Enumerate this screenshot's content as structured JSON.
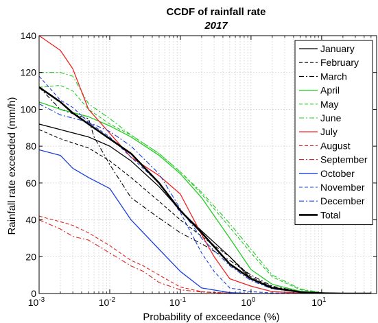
{
  "chart_data": {
    "type": "line",
    "title": "CCDF of rainfall rate",
    "subtitle": "2017",
    "xlabel": "Probability of exceedance (%)",
    "ylabel": "Rainfall rate exceeded (mm/h)",
    "xscale": "log",
    "xlim": [
      0.001,
      60
    ],
    "ylim": [
      0,
      140
    ],
    "yticks": [
      0,
      20,
      40,
      60,
      80,
      100,
      120,
      140
    ],
    "xticks": [
      {
        "value": 0.001,
        "base": "10",
        "exp": "-3"
      },
      {
        "value": 0.01,
        "base": "10",
        "exp": "-2"
      },
      {
        "value": 0.1,
        "base": "10",
        "exp": "-1"
      },
      {
        "value": 1,
        "base": "10",
        "exp": "0"
      },
      {
        "value": 10,
        "base": "10",
        "exp": "1"
      }
    ],
    "grid": true,
    "legend_position": "top-right",
    "series": [
      {
        "name": "January",
        "color": "#000000",
        "style": "solid",
        "width": 1.3,
        "x": [
          0.001,
          0.002,
          0.005,
          0.01,
          0.02,
          0.05,
          0.1,
          0.2,
          0.5,
          1,
          2,
          5,
          10,
          20,
          50
        ],
        "y": [
          92,
          89,
          85,
          80,
          72,
          58,
          45,
          34,
          20,
          8,
          3,
          0.8,
          0.2,
          0,
          0
        ]
      },
      {
        "name": "February",
        "color": "#000000",
        "style": "dashed",
        "width": 1.1,
        "x": [
          0.001,
          0.002,
          0.005,
          0.01,
          0.02,
          0.05,
          0.1,
          0.2,
          0.5,
          1,
          2,
          5,
          10,
          20,
          50
        ],
        "y": [
          89,
          84,
          79,
          72,
          63,
          50,
          40,
          31,
          20,
          9,
          3.5,
          1,
          0.3,
          0,
          0
        ]
      },
      {
        "name": "March",
        "color": "#000000",
        "style": "dashdot",
        "width": 1.1,
        "x": [
          0.001,
          0.002,
          0.004,
          0.005,
          0.006,
          0.01,
          0.02,
          0.05,
          0.1,
          0.2,
          0.5,
          1,
          2,
          5,
          10,
          20,
          50
        ],
        "y": [
          112,
          100,
          96,
          95,
          85,
          70,
          52,
          41,
          33,
          27,
          18,
          10,
          4,
          1,
          0.2,
          0,
          0
        ]
      },
      {
        "name": "April",
        "color": "#22cc22",
        "style": "solid",
        "width": 1.3,
        "x": [
          0.001,
          0.002,
          0.005,
          0.01,
          0.02,
          0.05,
          0.1,
          0.2,
          0.5,
          1,
          2,
          5,
          10,
          20,
          50
        ],
        "y": [
          104,
          100,
          96,
          91,
          85,
          75,
          65,
          52,
          30,
          13,
          5,
          1.2,
          0.3,
          0,
          0
        ]
      },
      {
        "name": "May",
        "color": "#22cc22",
        "style": "dashed",
        "width": 1.1,
        "x": [
          0.001,
          0.002,
          0.003,
          0.005,
          0.01,
          0.02,
          0.05,
          0.1,
          0.2,
          0.5,
          1,
          2,
          5,
          10,
          20,
          50
        ],
        "y": [
          112,
          113,
          110,
          100,
          92,
          86,
          76,
          66,
          54,
          36,
          22,
          9,
          2,
          0.5,
          0,
          0
        ]
      },
      {
        "name": "June",
        "color": "#22cc22",
        "style": "dashdot",
        "width": 1.1,
        "x": [
          0.001,
          0.002,
          0.003,
          0.005,
          0.01,
          0.02,
          0.05,
          0.1,
          0.2,
          0.5,
          1,
          2,
          5,
          10,
          20,
          50
        ],
        "y": [
          120,
          120,
          118,
          103,
          95,
          86,
          76,
          66,
          55,
          38,
          24,
          10,
          2.5,
          0.5,
          0,
          0
        ]
      },
      {
        "name": "July",
        "color": "#ee2222",
        "style": "solid",
        "width": 1.3,
        "x": [
          0.001,
          0.002,
          0.003,
          0.005,
          0.01,
          0.02,
          0.05,
          0.1,
          0.2,
          0.3,
          0.5,
          1,
          2,
          5,
          10,
          20,
          50
        ],
        "y": [
          140,
          132,
          122,
          100,
          87,
          74,
          64,
          54,
          32,
          20,
          8,
          4,
          1,
          0.3,
          0,
          0,
          0
        ]
      },
      {
        "name": "August",
        "color": "#dd2222",
        "style": "dashed",
        "width": 1.1,
        "x": [
          0.001,
          0.002,
          0.003,
          0.005,
          0.01,
          0.02,
          0.03,
          0.05,
          0.1,
          0.2,
          0.5,
          1,
          2,
          10,
          50
        ],
        "y": [
          42,
          39,
          37,
          33,
          26,
          18,
          15,
          10,
          3.5,
          1,
          0.2,
          0,
          0,
          0,
          0
        ]
      },
      {
        "name": "September",
        "color": "#dd2222",
        "style": "dashdot",
        "width": 1.1,
        "x": [
          0.001,
          0.002,
          0.003,
          0.005,
          0.01,
          0.02,
          0.03,
          0.05,
          0.1,
          0.2,
          0.5,
          1,
          2,
          10,
          50
        ],
        "y": [
          40,
          35,
          31,
          29,
          22,
          15,
          12,
          6,
          2,
          0.8,
          0.2,
          0,
          0,
          0,
          0
        ]
      },
      {
        "name": "October",
        "color": "#1a3fd9",
        "style": "solid",
        "width": 1.3,
        "x": [
          0.001,
          0.002,
          0.003,
          0.005,
          0.01,
          0.02,
          0.05,
          0.1,
          0.2,
          0.5,
          1,
          5,
          50
        ],
        "y": [
          78,
          75,
          68,
          63,
          57,
          40,
          24,
          12,
          3,
          0.5,
          0,
          0,
          0
        ]
      },
      {
        "name": "November",
        "color": "#1a3fd9",
        "style": "dashed",
        "width": 1.1,
        "x": [
          0.001,
          0.002,
          0.003,
          0.005,
          0.01,
          0.02,
          0.05,
          0.1,
          0.2,
          0.3,
          0.5,
          1,
          2,
          5,
          10,
          50
        ],
        "y": [
          118,
          105,
          101,
          93,
          85,
          74,
          60,
          44,
          22,
          12,
          3,
          1,
          0.3,
          0,
          0,
          0
        ]
      },
      {
        "name": "December",
        "color": "#1a3fd9",
        "style": "dashdot",
        "width": 1.1,
        "x": [
          0.001,
          0.002,
          0.005,
          0.01,
          0.02,
          0.05,
          0.1,
          0.2,
          0.5,
          1,
          2,
          5,
          10,
          50
        ],
        "y": [
          103,
          97,
          93,
          88,
          80,
          65,
          46,
          30,
          15,
          7,
          2.5,
          0.8,
          0.2,
          0
        ]
      },
      {
        "name": "Total",
        "color": "#000000",
        "style": "solid",
        "width": 2.6,
        "x": [
          0.001,
          0.002,
          0.003,
          0.005,
          0.01,
          0.02,
          0.05,
          0.1,
          0.2,
          0.5,
          1,
          2,
          5,
          10,
          20,
          50
        ],
        "y": [
          112,
          104,
          98,
          92,
          84,
          76,
          60,
          45,
          33,
          16,
          8,
          3,
          0.8,
          0.2,
          0,
          0
        ]
      }
    ]
  }
}
